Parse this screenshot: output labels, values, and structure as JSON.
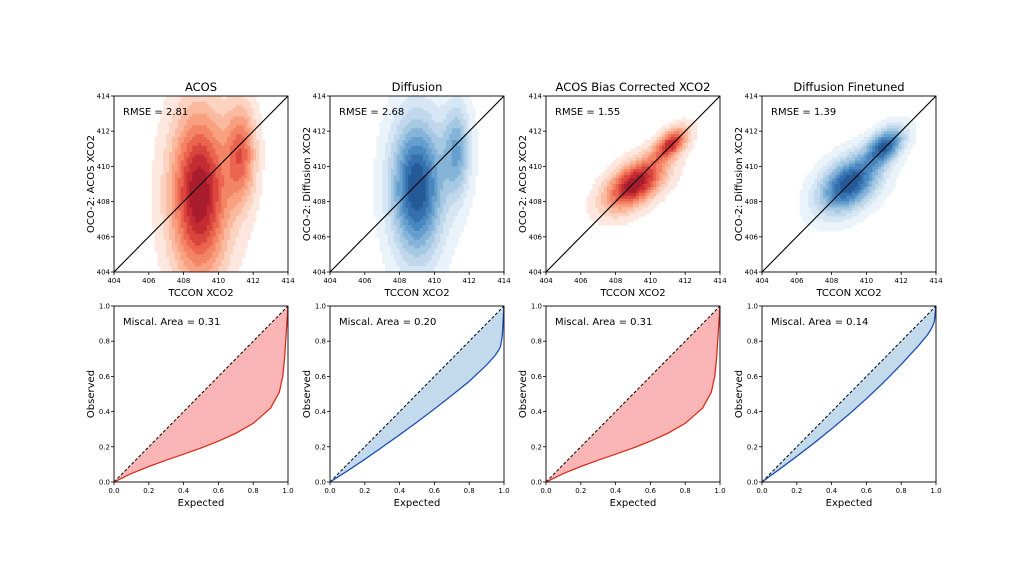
{
  "colors": {
    "acos": "#d7301f",
    "acos_fill": "#f8a8a8",
    "diffusion": "#1f4fb4",
    "diffusion_fill": "#b9d3ea"
  },
  "chart_data": [
    {
      "type": "contour",
      "cmap": "Reds",
      "title": "ACOS",
      "xlabel": "TCCON XCO2",
      "ylabel": "OCO-2: ACOS XCO2",
      "xlim": [
        404,
        414
      ],
      "ylim": [
        404,
        414
      ],
      "xticks": [
        "404",
        "406",
        "408",
        "410",
        "412",
        "414"
      ],
      "yticks": [
        "404",
        "406",
        "408",
        "410",
        "412",
        "414"
      ],
      "annotation": "RMSE = 2.81",
      "reference_line": [
        [
          404,
          404
        ],
        [
          414,
          414
        ]
      ],
      "modes": [
        {
          "x": 408.9,
          "y": 408.4,
          "sx": 1.15,
          "sy": 3.3,
          "w": 1.0
        },
        {
          "x": 411.3,
          "y": 410.7,
          "sx": 0.6,
          "sy": 2.0,
          "w": 0.6
        }
      ]
    },
    {
      "type": "contour",
      "cmap": "Blues",
      "title": "Diffusion",
      "xlabel": "TCCON XCO2",
      "ylabel": "OCO-2: Diffusion XCO2",
      "xlim": [
        404,
        414
      ],
      "ylim": [
        404,
        414
      ],
      "xticks": [
        "404",
        "406",
        "408",
        "410",
        "412",
        "414"
      ],
      "yticks": [
        "404",
        "406",
        "408",
        "410",
        "412",
        "414"
      ],
      "annotation": "RMSE = 2.68",
      "reference_line": [
        [
          404,
          404
        ],
        [
          414,
          414
        ]
      ],
      "modes": [
        {
          "x": 409.0,
          "y": 408.8,
          "sx": 1.05,
          "sy": 2.8,
          "w": 1.0
        },
        {
          "x": 411.3,
          "y": 410.9,
          "sx": 0.55,
          "sy": 1.9,
          "w": 0.55
        }
      ]
    },
    {
      "type": "contour",
      "cmap": "Reds",
      "title": "ACOS Bias Corrected XCO2",
      "xlabel": "TCCON XCO2",
      "ylabel": "OCO-2: ACOS XCO2",
      "xlim": [
        404,
        414
      ],
      "ylim": [
        404,
        414
      ],
      "xticks": [
        "404",
        "406",
        "408",
        "410",
        "412",
        "414"
      ],
      "yticks": [
        "404",
        "406",
        "408",
        "410",
        "412",
        "414"
      ],
      "annotation": "RMSE = 1.55",
      "reference_line": [
        [
          404,
          404
        ],
        [
          414,
          414
        ]
      ],
      "modes": [
        {
          "x": 409.1,
          "y": 409.0,
          "sx": 1.35,
          "sy": 0.75,
          "rot": 0.65,
          "w": 1.0
        },
        {
          "x": 411.2,
          "y": 411.3,
          "sx": 0.8,
          "sy": 0.45,
          "rot": 0.75,
          "w": 0.8
        }
      ]
    },
    {
      "type": "contour",
      "cmap": "Blues",
      "title": "Diffusion Finetuned",
      "xlabel": "TCCON XCO2",
      "ylabel": "OCO-2: Diffusion XCO2",
      "xlim": [
        404,
        414
      ],
      "ylim": [
        404,
        414
      ],
      "xticks": [
        "404",
        "406",
        "408",
        "410",
        "412",
        "414"
      ],
      "yticks": [
        "404",
        "406",
        "408",
        "410",
        "412",
        "414"
      ],
      "annotation": "RMSE = 1.39",
      "reference_line": [
        [
          404,
          404
        ],
        [
          414,
          414
        ]
      ],
      "modes": [
        {
          "x": 409.0,
          "y": 409.0,
          "sx": 1.4,
          "sy": 0.9,
          "rot": 0.7,
          "w": 1.0
        },
        {
          "x": 411.1,
          "y": 411.2,
          "sx": 0.9,
          "sy": 0.55,
          "rot": 0.75,
          "w": 0.85
        }
      ]
    },
    {
      "type": "line",
      "title": "",
      "xlabel": "Expected",
      "ylabel": "Observed",
      "xlim": [
        0,
        1
      ],
      "ylim": [
        0,
        1
      ],
      "xticks": [
        "0.0",
        "0.2",
        "0.4",
        "0.6",
        "0.8",
        "1.0"
      ],
      "yticks": [
        "0.0",
        "0.2",
        "0.4",
        "0.6",
        "0.8",
        "1.0"
      ],
      "annotation": "Miscal. Area = 0.31",
      "color_key": "acos",
      "ideal": [
        [
          0,
          0
        ],
        [
          1,
          1
        ]
      ],
      "series": [
        {
          "name": "calibration",
          "x": [
            0,
            0.1,
            0.2,
            0.3,
            0.4,
            0.5,
            0.6,
            0.7,
            0.8,
            0.9,
            0.95,
            0.97,
            0.98,
            0.99,
            1.0
          ],
          "y": [
            0,
            0.048,
            0.088,
            0.124,
            0.158,
            0.193,
            0.232,
            0.277,
            0.333,
            0.42,
            0.51,
            0.6,
            0.7,
            0.85,
            1.0
          ]
        }
      ]
    },
    {
      "type": "line",
      "title": "",
      "xlabel": "Expected",
      "ylabel": "Observed",
      "xlim": [
        0,
        1
      ],
      "ylim": [
        0,
        1
      ],
      "xticks": [
        "0.0",
        "0.2",
        "0.4",
        "0.6",
        "0.8",
        "1.0"
      ],
      "yticks": [
        "0.0",
        "0.2",
        "0.4",
        "0.6",
        "0.8",
        "1.0"
      ],
      "annotation": "Miscal. Area = 0.20",
      "color_key": "diffusion",
      "ideal": [
        [
          0,
          0
        ],
        [
          1,
          1
        ]
      ],
      "series": [
        {
          "name": "calibration",
          "x": [
            0,
            0.1,
            0.2,
            0.3,
            0.4,
            0.5,
            0.6,
            0.7,
            0.8,
            0.9,
            0.95,
            0.97,
            0.98,
            0.99,
            1.0
          ],
          "y": [
            0,
            0.063,
            0.129,
            0.198,
            0.268,
            0.34,
            0.415,
            0.492,
            0.572,
            0.665,
            0.72,
            0.75,
            0.77,
            0.83,
            1.0
          ]
        }
      ]
    },
    {
      "type": "line",
      "title": "",
      "xlabel": "Expected",
      "ylabel": "Observed",
      "xlim": [
        0,
        1
      ],
      "ylim": [
        0,
        1
      ],
      "xticks": [
        "0.0",
        "0.2",
        "0.4",
        "0.6",
        "0.8",
        "1.0"
      ],
      "yticks": [
        "0.0",
        "0.2",
        "0.4",
        "0.6",
        "0.8",
        "1.0"
      ],
      "annotation": "Miscal. Area = 0.31",
      "color_key": "acos",
      "ideal": [
        [
          0,
          0
        ],
        [
          1,
          1
        ]
      ],
      "series": [
        {
          "name": "calibration",
          "x": [
            0,
            0.1,
            0.2,
            0.3,
            0.4,
            0.5,
            0.6,
            0.7,
            0.8,
            0.9,
            0.95,
            0.97,
            0.98,
            0.99,
            1.0
          ],
          "y": [
            0,
            0.048,
            0.088,
            0.124,
            0.158,
            0.193,
            0.232,
            0.277,
            0.333,
            0.42,
            0.51,
            0.6,
            0.7,
            0.85,
            1.0
          ]
        }
      ]
    },
    {
      "type": "line",
      "title": "",
      "xlabel": "Expected",
      "ylabel": "Observed",
      "xlim": [
        0,
        1
      ],
      "ylim": [
        0,
        1
      ],
      "xticks": [
        "0.0",
        "0.2",
        "0.4",
        "0.6",
        "0.8",
        "1.0"
      ],
      "yticks": [
        "0.0",
        "0.2",
        "0.4",
        "0.6",
        "0.8",
        "1.0"
      ],
      "annotation": "Miscal. Area = 0.14",
      "color_key": "diffusion",
      "ideal": [
        [
          0,
          0
        ],
        [
          1,
          1
        ]
      ],
      "series": [
        {
          "name": "calibration",
          "x": [
            0,
            0.1,
            0.2,
            0.3,
            0.4,
            0.5,
            0.6,
            0.7,
            0.8,
            0.9,
            0.95,
            0.97,
            0.98,
            0.99,
            1.0
          ],
          "y": [
            0,
            0.072,
            0.146,
            0.222,
            0.302,
            0.385,
            0.473,
            0.567,
            0.668,
            0.775,
            0.835,
            0.865,
            0.885,
            0.91,
            1.0
          ]
        }
      ]
    }
  ]
}
